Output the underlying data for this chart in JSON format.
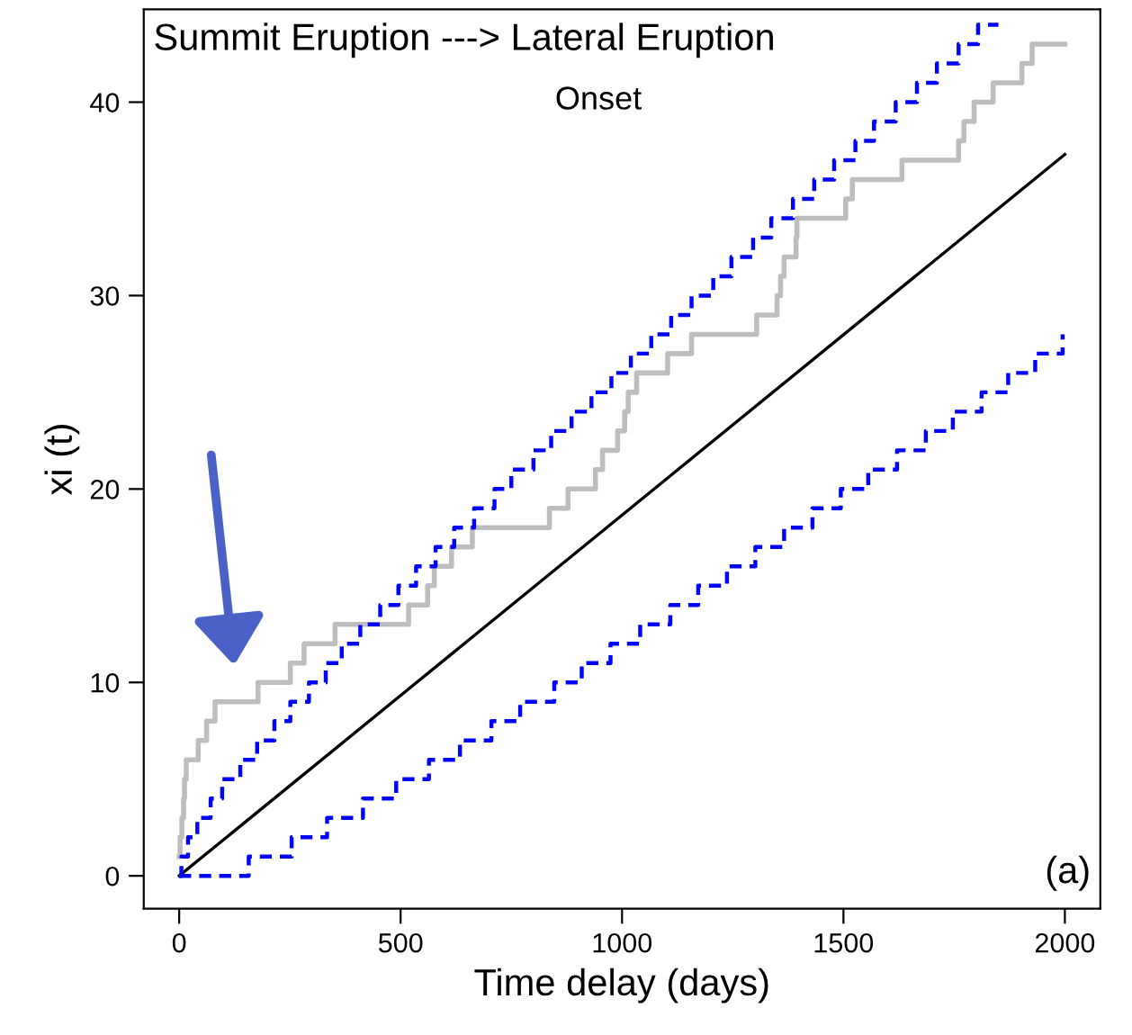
{
  "chart_data": {
    "type": "step",
    "title": "Summit Eruption ---> Lateral Eruption",
    "subtitle": "Onset",
    "xlabel": "Time delay (days)",
    "ylabel": "xi (t)",
    "annotations": [
      "(a)"
    ],
    "xlim": [
      -80,
      2080
    ],
    "ylim": [
      -1.7,
      44.8
    ],
    "xticks": [
      0,
      500,
      1000,
      1500,
      2000
    ],
    "yticks": [
      0,
      10,
      20,
      30,
      40
    ],
    "grid": false,
    "legend": false,
    "series": [
      {
        "color": "#bebebe",
        "line_style": "solid",
        "x": [
          0,
          2,
          6,
          10,
          12,
          16,
          43,
          62,
          81,
          178,
          251,
          282,
          352,
          518,
          561,
          576,
          615,
          662,
          836,
          878,
          940,
          956,
          990,
          1006,
          1014,
          1033,
          1103,
          1157,
          1304,
          1350,
          1358,
          1366,
          1393,
          1395,
          1505,
          1520,
          1632,
          1760,
          1772,
          1795,
          1838,
          1903,
          1926,
          2000
        ],
        "values": [
          1,
          2,
          3,
          4,
          5,
          6,
          7,
          8,
          9,
          10,
          11,
          12,
          13,
          14,
          15,
          16,
          17,
          18,
          19,
          20,
          21,
          22,
          23,
          24,
          25,
          26,
          27,
          28,
          29,
          30,
          31,
          32,
          33,
          34,
          35,
          36,
          37,
          38,
          39,
          40,
          41,
          42,
          43,
          43
        ]
      },
      {
        "type": "line",
        "color": "#000000",
        "line_style": "solid",
        "x": [
          0,
          2000
        ],
        "values": [
          0,
          37.3
        ]
      },
      {
        "color": "#0000ff",
        "line_style": "dashed",
        "x": [
          0,
          5,
          20,
          41,
          71,
          97,
          138,
          176,
          215,
          251,
          293,
          331,
          367,
          409,
          454,
          495,
          535,
          579,
          621,
          666,
          712,
          750,
          800,
          840,
          886,
          931,
          976,
          1020,
          1066,
          1111,
          1157,
          1206,
          1247,
          1296,
          1337,
          1386,
          1434,
          1479,
          1527,
          1569,
          1618,
          1666,
          1711,
          1760,
          1804,
          1850
        ],
        "values": [
          0,
          1,
          2,
          3,
          4,
          5,
          6,
          7,
          8,
          9,
          10,
          11,
          12,
          13,
          14,
          15,
          16,
          17,
          18,
          19,
          20,
          21,
          22,
          23,
          24,
          25,
          26,
          27,
          28,
          29,
          30,
          31,
          32,
          33,
          34,
          35,
          36,
          37,
          38,
          39,
          40,
          41,
          42,
          43,
          44,
          44
        ]
      },
      {
        "color": "#0000ff",
        "line_style": "dashed",
        "x": [
          0,
          157,
          254,
          334,
          415,
          490,
          564,
          634,
          705,
          770,
          847,
          909,
          974,
          1041,
          1109,
          1172,
          1237,
          1301,
          1366,
          1430,
          1494,
          1556,
          1621,
          1686,
          1747,
          1812,
          1872,
          1933,
          1995
        ],
        "values": [
          0,
          1,
          2,
          3,
          4,
          5,
          6,
          7,
          8,
          9,
          10,
          11,
          12,
          13,
          14,
          15,
          16,
          17,
          18,
          19,
          20,
          21,
          22,
          23,
          24,
          25,
          26,
          27,
          28
        ]
      }
    ]
  }
}
